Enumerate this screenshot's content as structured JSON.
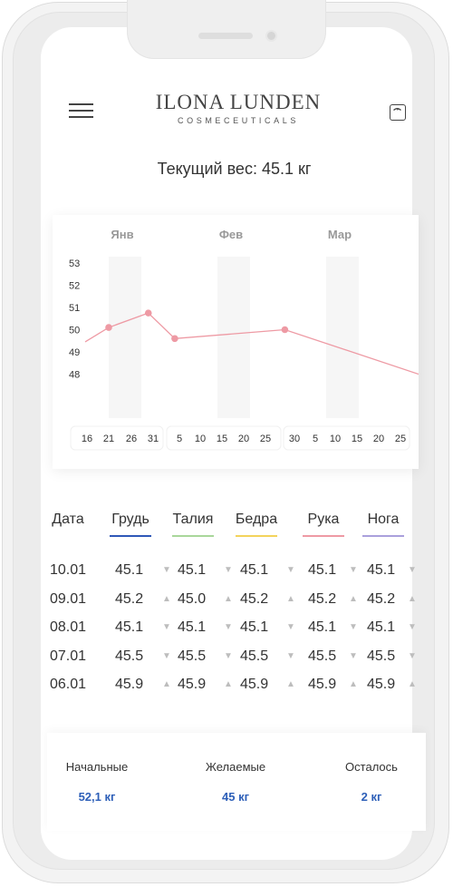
{
  "brand": {
    "name": "ILONA LUNDEN",
    "subtitle": "COSMECEUTICALS"
  },
  "current_weight": "Текущий вес: 45.1 кг",
  "icons": {
    "menu": "hamburger-menu-icon",
    "scale": "scale-icon"
  },
  "chart_data": {
    "type": "line",
    "months": [
      "Янв",
      "Фев",
      "Мар"
    ],
    "y_ticks": [
      53,
      52,
      51,
      50,
      49,
      48
    ],
    "ylim": [
      47.2,
      53.6
    ],
    "x_ticks": [
      "16",
      "21",
      "26",
      "31",
      "5",
      "10",
      "15",
      "20",
      "25",
      "30",
      "5",
      "10",
      "15",
      "20",
      "25"
    ],
    "points": [
      {
        "x": 0.5,
        "y": 49.45,
        "marker": false
      },
      {
        "x": 1,
        "y": 50.1,
        "marker": true
      },
      {
        "x": 2.8,
        "y": 50.75,
        "marker": true
      },
      {
        "x": 4,
        "y": 49.6,
        "marker": true
      },
      {
        "x": 9,
        "y": 50.0,
        "marker": true
      },
      {
        "x": 15.5,
        "y": 48.0,
        "marker": false
      }
    ],
    "line_color": "#ee9aa4"
  },
  "table": {
    "headers": [
      {
        "label": "Дата"
      },
      {
        "label": "Грудь",
        "color": "#2f58b8"
      },
      {
        "label": "Талия",
        "color": "#a9d79b"
      },
      {
        "label": "Бедра",
        "color": "#f3d35c"
      },
      {
        "label": "Рука",
        "color": "#ee9aa4"
      },
      {
        "label": "Нога",
        "color": "#aaa0dc"
      }
    ],
    "rows": [
      {
        "date": "10.01",
        "values": [
          "45.1",
          "45.1",
          "45.1",
          "45.1",
          "45.1"
        ],
        "arrows": [
          "down",
          "down",
          "down",
          "down",
          "down"
        ]
      },
      {
        "date": "09.01",
        "values": [
          "45.2",
          "45.0",
          "45.2",
          "45.2",
          "45.2"
        ],
        "arrows": [
          "up",
          "up",
          "up",
          "up",
          "up"
        ]
      },
      {
        "date": "08.01",
        "values": [
          "45.1",
          "45.1",
          "45.1",
          "45.1",
          "45.1"
        ],
        "arrows": [
          "down",
          "down",
          "down",
          "down",
          "down"
        ]
      },
      {
        "date": "07.01",
        "values": [
          "45.5",
          "45.5",
          "45.5",
          "45.5",
          "45.5"
        ],
        "arrows": [
          "down",
          "down",
          "down",
          "down",
          "down"
        ]
      },
      {
        "date": "06.01",
        "values": [
          "45.9",
          "45.9",
          "45.9",
          "45.9",
          "45.9"
        ],
        "arrows": [
          "up",
          "up",
          "up",
          "up",
          "up"
        ]
      }
    ]
  },
  "summary": [
    {
      "label": "Начальные",
      "value": "52,1 кг"
    },
    {
      "label": "Желаемые",
      "value": "45 кг"
    },
    {
      "label": "Осталось",
      "value": "2 кг"
    }
  ]
}
